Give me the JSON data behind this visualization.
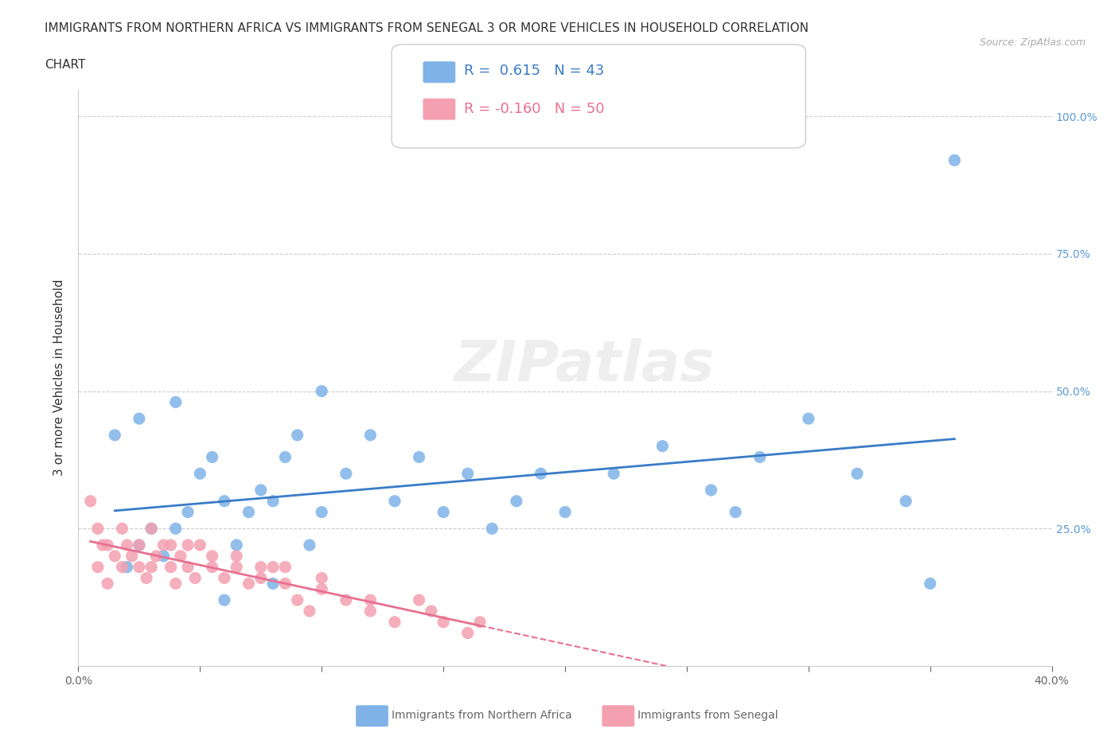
{
  "title_line1": "IMMIGRANTS FROM NORTHERN AFRICA VS IMMIGRANTS FROM SENEGAL 3 OR MORE VEHICLES IN HOUSEHOLD CORRELATION",
  "title_line2": "CHART",
  "source": "Source: ZipAtlas.com",
  "xlabel": "",
  "ylabel": "3 or more Vehicles in Household",
  "xlim": [
    0.0,
    0.4
  ],
  "ylim": [
    0.0,
    1.05
  ],
  "xticks": [
    0.0,
    0.05,
    0.1,
    0.15,
    0.2,
    0.25,
    0.3,
    0.35,
    0.4
  ],
  "xticklabels": [
    "0.0%",
    "",
    "",
    "",
    "",
    "",
    "",
    "",
    "40.0%"
  ],
  "yticks": [
    0.0,
    0.25,
    0.5,
    0.75,
    1.0
  ],
  "yticklabels": [
    "",
    "25.0%",
    "50.0%",
    "75.0%",
    "100.0%"
  ],
  "blue_R": 0.615,
  "blue_N": 43,
  "pink_R": -0.16,
  "pink_N": 50,
  "blue_color": "#7fb3e8",
  "pink_color": "#f4a0b0",
  "blue_line_color": "#3a7cc7",
  "pink_line_color": "#e87090",
  "watermark": "ZIPatlas",
  "legend_label_blue": "Immigrants from Northern Africa",
  "legend_label_pink": "Immigrants from Senegal",
  "blue_scatter_x": [
    0.02,
    0.025,
    0.03,
    0.035,
    0.04,
    0.045,
    0.05,
    0.055,
    0.06,
    0.065,
    0.07,
    0.075,
    0.08,
    0.085,
    0.09,
    0.095,
    0.1,
    0.11,
    0.12,
    0.13,
    0.14,
    0.15,
    0.16,
    0.17,
    0.18,
    0.19,
    0.2,
    0.22,
    0.24,
    0.26,
    0.28,
    0.3,
    0.32,
    0.34,
    0.36,
    0.015,
    0.025,
    0.04,
    0.06,
    0.08,
    0.1,
    0.27,
    0.35
  ],
  "blue_scatter_y": [
    0.18,
    0.22,
    0.25,
    0.2,
    0.25,
    0.28,
    0.35,
    0.38,
    0.3,
    0.22,
    0.28,
    0.32,
    0.3,
    0.38,
    0.42,
    0.22,
    0.28,
    0.35,
    0.42,
    0.3,
    0.38,
    0.28,
    0.35,
    0.25,
    0.3,
    0.35,
    0.28,
    0.35,
    0.4,
    0.32,
    0.38,
    0.45,
    0.35,
    0.3,
    0.92,
    0.42,
    0.45,
    0.48,
    0.12,
    0.15,
    0.5,
    0.28,
    0.15
  ],
  "pink_scatter_x": [
    0.005,
    0.008,
    0.01,
    0.012,
    0.015,
    0.018,
    0.02,
    0.022,
    0.025,
    0.028,
    0.03,
    0.032,
    0.035,
    0.038,
    0.04,
    0.042,
    0.045,
    0.048,
    0.05,
    0.055,
    0.06,
    0.065,
    0.07,
    0.075,
    0.08,
    0.085,
    0.09,
    0.095,
    0.1,
    0.11,
    0.12,
    0.13,
    0.14,
    0.15,
    0.16,
    0.008,
    0.012,
    0.018,
    0.025,
    0.03,
    0.038,
    0.045,
    0.055,
    0.065,
    0.075,
    0.085,
    0.1,
    0.12,
    0.145,
    0.165
  ],
  "pink_scatter_y": [
    0.3,
    0.18,
    0.22,
    0.15,
    0.2,
    0.18,
    0.22,
    0.2,
    0.18,
    0.16,
    0.18,
    0.2,
    0.22,
    0.18,
    0.15,
    0.2,
    0.18,
    0.16,
    0.22,
    0.18,
    0.16,
    0.18,
    0.15,
    0.16,
    0.18,
    0.15,
    0.12,
    0.1,
    0.14,
    0.12,
    0.1,
    0.08,
    0.12,
    0.08,
    0.06,
    0.25,
    0.22,
    0.25,
    0.22,
    0.25,
    0.22,
    0.22,
    0.2,
    0.2,
    0.18,
    0.18,
    0.16,
    0.12,
    0.1,
    0.08
  ]
}
